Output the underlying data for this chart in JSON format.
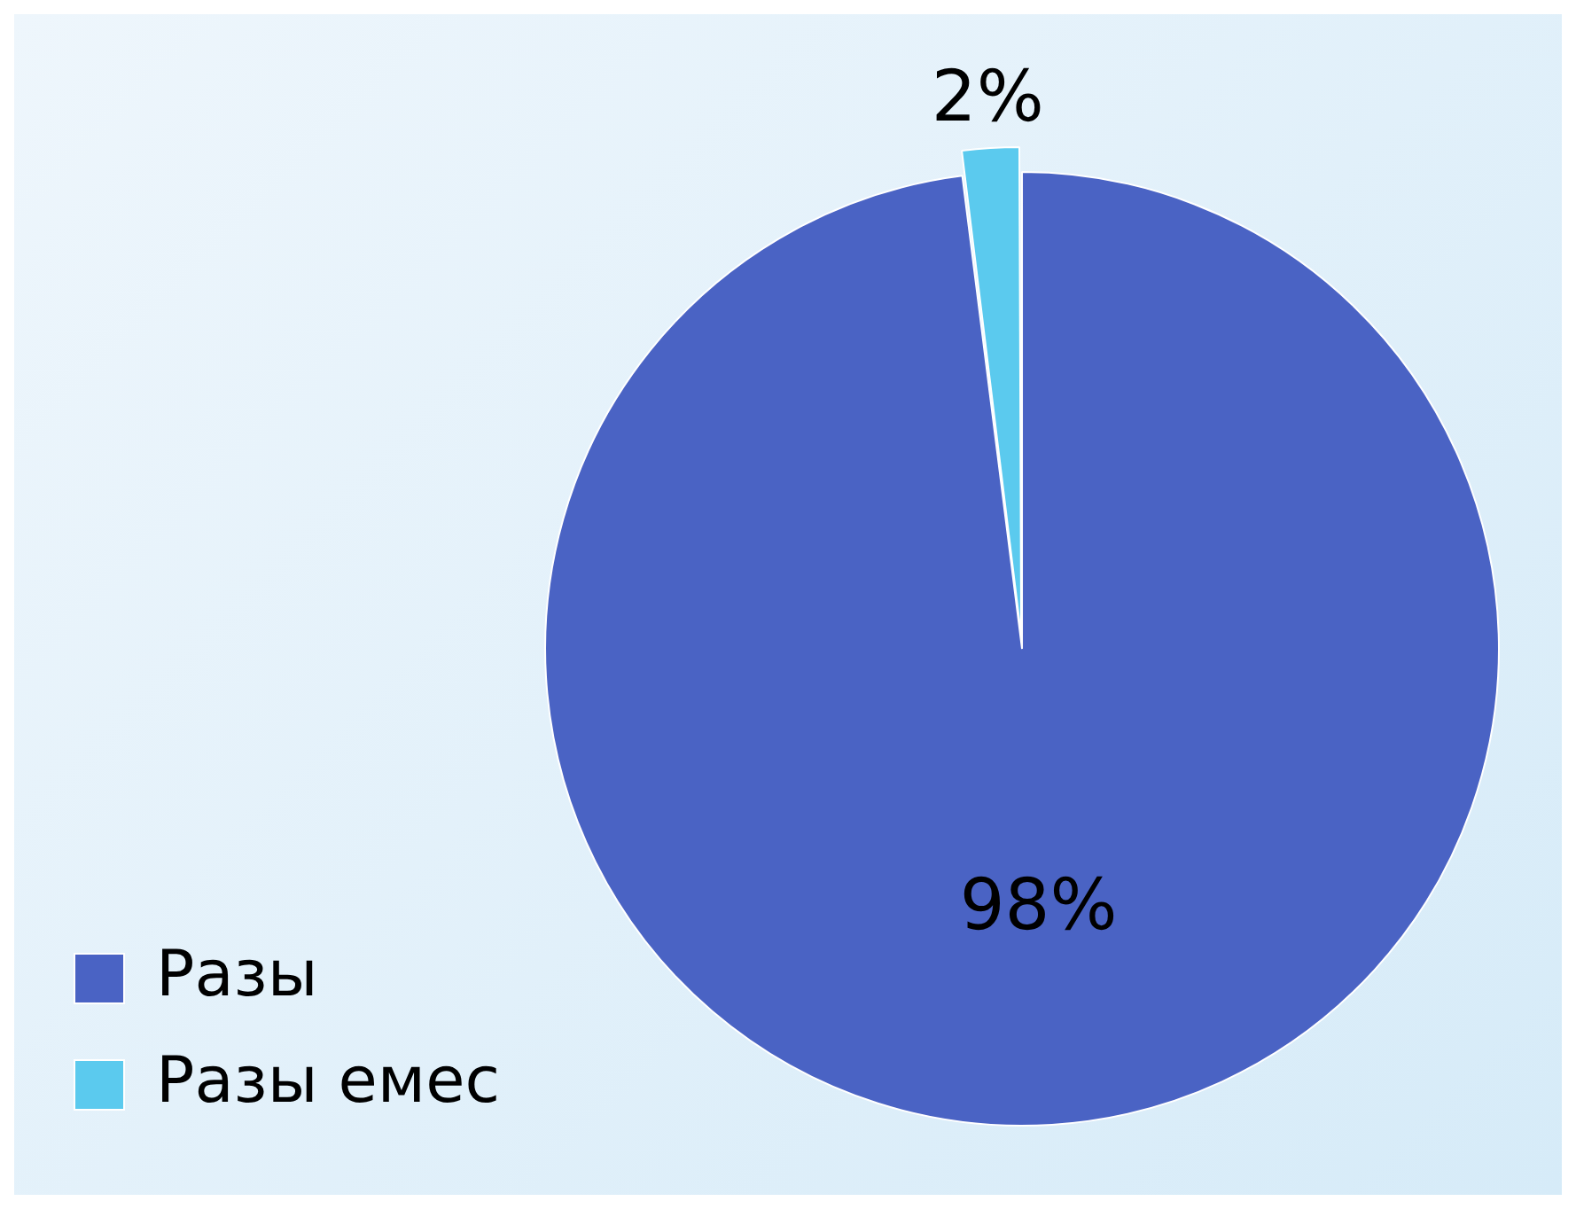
{
  "chart_data": {
    "type": "pie",
    "categories": [
      "Разы",
      "Разы емес"
    ],
    "values": [
      98,
      2
    ],
    "colors": [
      "#4a63c4",
      "#5bcaee"
    ],
    "value_labels": [
      "98%",
      "2%"
    ],
    "legend": "bottom left"
  }
}
